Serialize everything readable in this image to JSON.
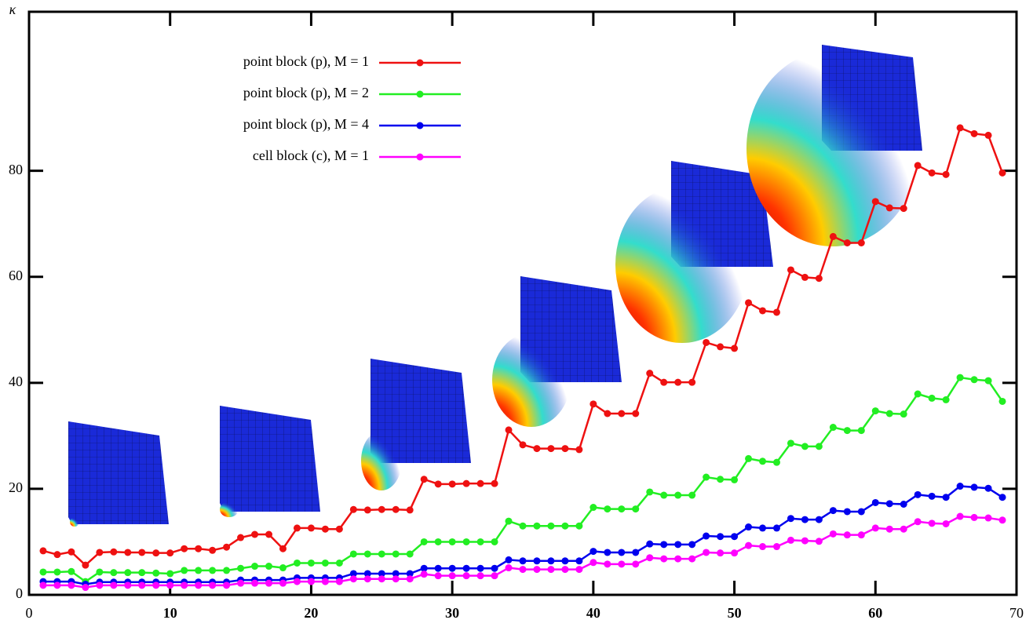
{
  "chart_data": {
    "type": "line",
    "ylabel": "κ",
    "xlim": [
      0,
      70
    ],
    "ylim": [
      0,
      110
    ],
    "xticks": [
      0,
      10,
      20,
      30,
      40,
      50,
      60,
      70
    ],
    "yticks": [
      0,
      20,
      40,
      60,
      80
    ],
    "grid": false,
    "legend": "upper left",
    "x": [
      1,
      2,
      3,
      4,
      5,
      6,
      7,
      8,
      9,
      10,
      11,
      12,
      13,
      14,
      15,
      16,
      17,
      18,
      19,
      20,
      21,
      22,
      23,
      24,
      25,
      26,
      27,
      28,
      29,
      30,
      31,
      32,
      33,
      34,
      35,
      36,
      37,
      38,
      39,
      40,
      41,
      42,
      43,
      44,
      45,
      46,
      47,
      48,
      49,
      50,
      51,
      52,
      53,
      54,
      55,
      56,
      57,
      58,
      59,
      60,
      61,
      62,
      63,
      64,
      65,
      66,
      67,
      68,
      69
    ],
    "series": [
      {
        "name": "point block (p), M = 1",
        "color": "#ee1111",
        "values": [
          8.3,
          7.6,
          8.1,
          5.6,
          8.0,
          8.1,
          8.0,
          8.0,
          7.9,
          7.9,
          8.7,
          8.7,
          8.4,
          9.0,
          10.8,
          11.4,
          11.4,
          8.7,
          12.6,
          12.6,
          12.4,
          12.4,
          16.1,
          16.0,
          16.1,
          16.1,
          16.0,
          21.8,
          20.9,
          20.9,
          21.0,
          21.0,
          21.0,
          31.1,
          28.3,
          27.6,
          27.6,
          27.6,
          27.4,
          36.0,
          34.2,
          34.2,
          34.2,
          41.8,
          40.1,
          40.1,
          40.1,
          47.6,
          46.8,
          46.5,
          55.1,
          53.6,
          53.3,
          61.3,
          59.9,
          59.7,
          67.6,
          66.4,
          66.4,
          74.2,
          73.0,
          72.9,
          81.0,
          79.6,
          79.3,
          88.1,
          87.0,
          86.7,
          79.6
        ]
      },
      {
        "name": "point block (p), M = 2",
        "color": "#22ee22",
        "values": [
          4.3,
          4.3,
          4.4,
          2.5,
          4.3,
          4.2,
          4.2,
          4.2,
          4.1,
          4.0,
          4.6,
          4.6,
          4.6,
          4.6,
          5.0,
          5.4,
          5.4,
          5.1,
          6.0,
          6.0,
          6.0,
          6.0,
          7.7,
          7.7,
          7.7,
          7.7,
          7.7,
          10.0,
          10.0,
          10.0,
          10.0,
          10.0,
          10.0,
          13.9,
          13.0,
          13.0,
          13.0,
          13.0,
          13.0,
          16.5,
          16.2,
          16.2,
          16.2,
          19.4,
          18.8,
          18.8,
          18.8,
          22.2,
          21.8,
          21.7,
          25.7,
          25.2,
          25.0,
          28.6,
          28.0,
          28.0,
          31.6,
          31.0,
          31.0,
          34.7,
          34.2,
          34.1,
          37.9,
          37.1,
          36.8,
          41.0,
          40.6,
          40.4,
          36.5
        ]
      },
      {
        "name": "point block (p), M = 4",
        "color": "#0000ee",
        "values": [
          2.5,
          2.5,
          2.5,
          2.0,
          2.4,
          2.4,
          2.4,
          2.4,
          2.4,
          2.4,
          2.4,
          2.4,
          2.4,
          2.4,
          2.8,
          2.8,
          2.8,
          2.8,
          3.2,
          3.2,
          3.2,
          3.2,
          4.0,
          4.0,
          4.0,
          4.0,
          4.0,
          5.0,
          5.0,
          5.0,
          5.0,
          5.0,
          5.0,
          6.6,
          6.4,
          6.4,
          6.4,
          6.4,
          6.4,
          8.2,
          8.0,
          8.0,
          8.0,
          9.6,
          9.5,
          9.5,
          9.5,
          11.1,
          11.0,
          11.0,
          12.8,
          12.6,
          12.6,
          14.4,
          14.2,
          14.2,
          15.9,
          15.7,
          15.7,
          17.4,
          17.2,
          17.1,
          18.9,
          18.6,
          18.4,
          20.5,
          20.3,
          20.1,
          18.4
        ]
      },
      {
        "name": "cell block (c), M = 1",
        "color": "#ff00ff",
        "values": [
          1.8,
          1.8,
          1.8,
          1.4,
          1.8,
          1.8,
          1.8,
          1.8,
          1.8,
          1.8,
          1.8,
          1.8,
          1.8,
          1.8,
          2.2,
          2.2,
          2.2,
          2.2,
          2.5,
          2.5,
          2.5,
          2.5,
          3.0,
          3.0,
          3.0,
          3.0,
          3.0,
          3.9,
          3.6,
          3.6,
          3.6,
          3.6,
          3.6,
          5.1,
          4.8,
          4.8,
          4.8,
          4.8,
          4.8,
          6.1,
          5.8,
          5.8,
          5.8,
          7.0,
          6.8,
          6.8,
          6.8,
          8.0,
          7.9,
          7.9,
          9.3,
          9.1,
          9.1,
          10.3,
          10.2,
          10.1,
          11.5,
          11.3,
          11.3,
          12.6,
          12.4,
          12.4,
          13.8,
          13.5,
          13.4,
          14.8,
          14.6,
          14.5,
          14.1
        ]
      }
    ]
  }
}
